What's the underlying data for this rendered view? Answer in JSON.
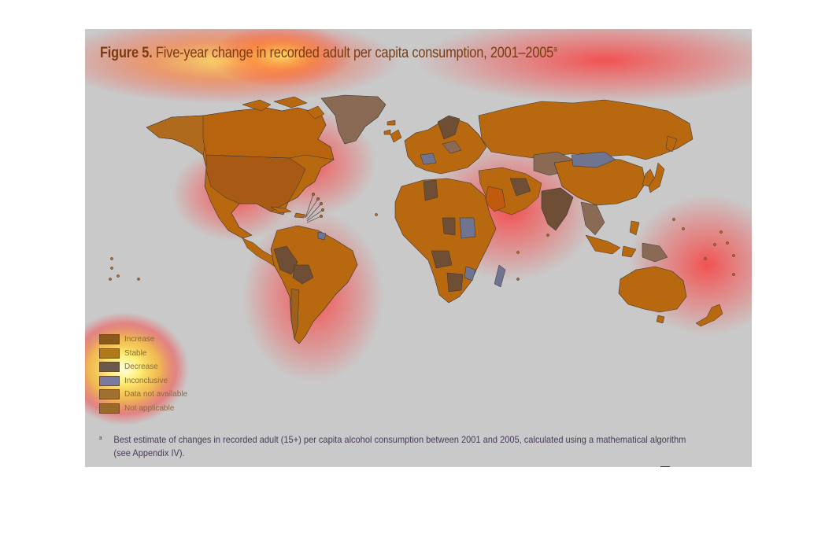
{
  "figure": {
    "title_bold": "Figure 5.",
    "title_text": " Five-year change in recorded adult per capita consumption, 2001–2005",
    "title_superscript": "a"
  },
  "legend": [
    {
      "label": "Increase",
      "color": "#8a5a1a"
    },
    {
      "label": "Stable",
      "color": "#b07a1a"
    },
    {
      "label": "Decrease",
      "color": "#6a5a4a"
    },
    {
      "label": "Inconclusive",
      "color": "#7a7aa0"
    },
    {
      "label": "Data not available",
      "color": "#a07030"
    },
    {
      "label": "Not applicable",
      "color": "#9a6a2a"
    }
  ],
  "footnote": {
    "marker": "a",
    "text": "Best estimate of changes in recorded adult (15+) per capita alcohol consumption between 2001 and 2005, calculated using a mathematical algorithm (see Appendix IV)."
  },
  "colors": {
    "ocean": "#c9c9c9",
    "land_main": "#b8680f",
    "land_dark": "#6e4f35",
    "land_blue": "#6f7590",
    "land_grey": "#8a6a55",
    "heat_red": "#e8323a",
    "heat_yellow": "#fff07a"
  }
}
